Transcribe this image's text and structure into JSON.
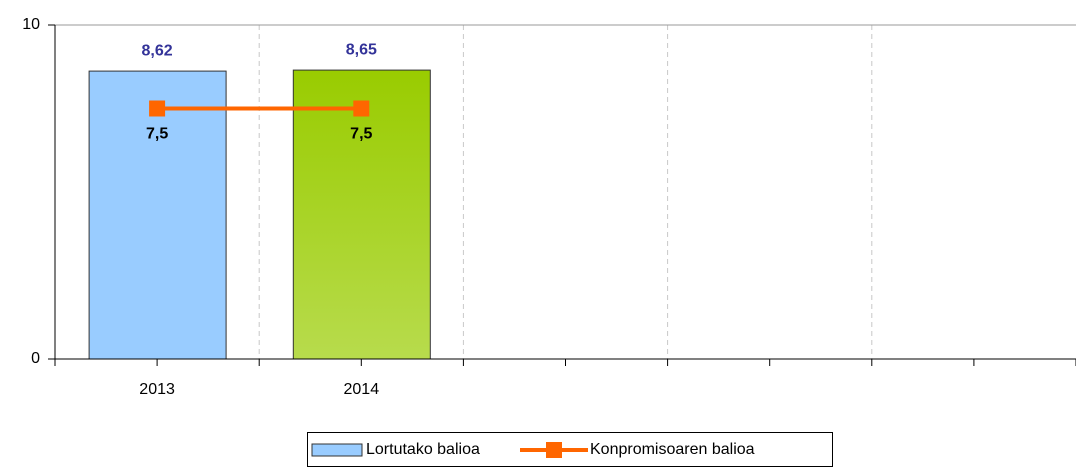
{
  "chart_data": {
    "type": "bar",
    "categories": [
      "2013",
      "2014",
      null,
      null,
      null
    ],
    "series": [
      {
        "name": "Lortutako balioa",
        "type": "bar",
        "color": "#99ccff",
        "bar_colors": [
          "#99ccff",
          "#99cc00",
          null,
          null,
          null
        ],
        "values": [
          8.62,
          8.65,
          null,
          null,
          null
        ],
        "value_labels": [
          "8,62",
          "8,65",
          null,
          null,
          null
        ],
        "label_color": "#333399"
      },
      {
        "name": "Konpromisoaren balioa",
        "type": "line",
        "color": "#ff6600",
        "values": [
          7.5,
          7.5,
          null,
          null,
          null
        ],
        "value_labels": [
          "7,5",
          "7,5",
          null,
          null,
          null
        ],
        "label_color": "#000000"
      }
    ],
    "ylim": [
      0,
      10
    ],
    "yticks": [
      0,
      10
    ],
    "grid": true,
    "legend": "bottom"
  }
}
